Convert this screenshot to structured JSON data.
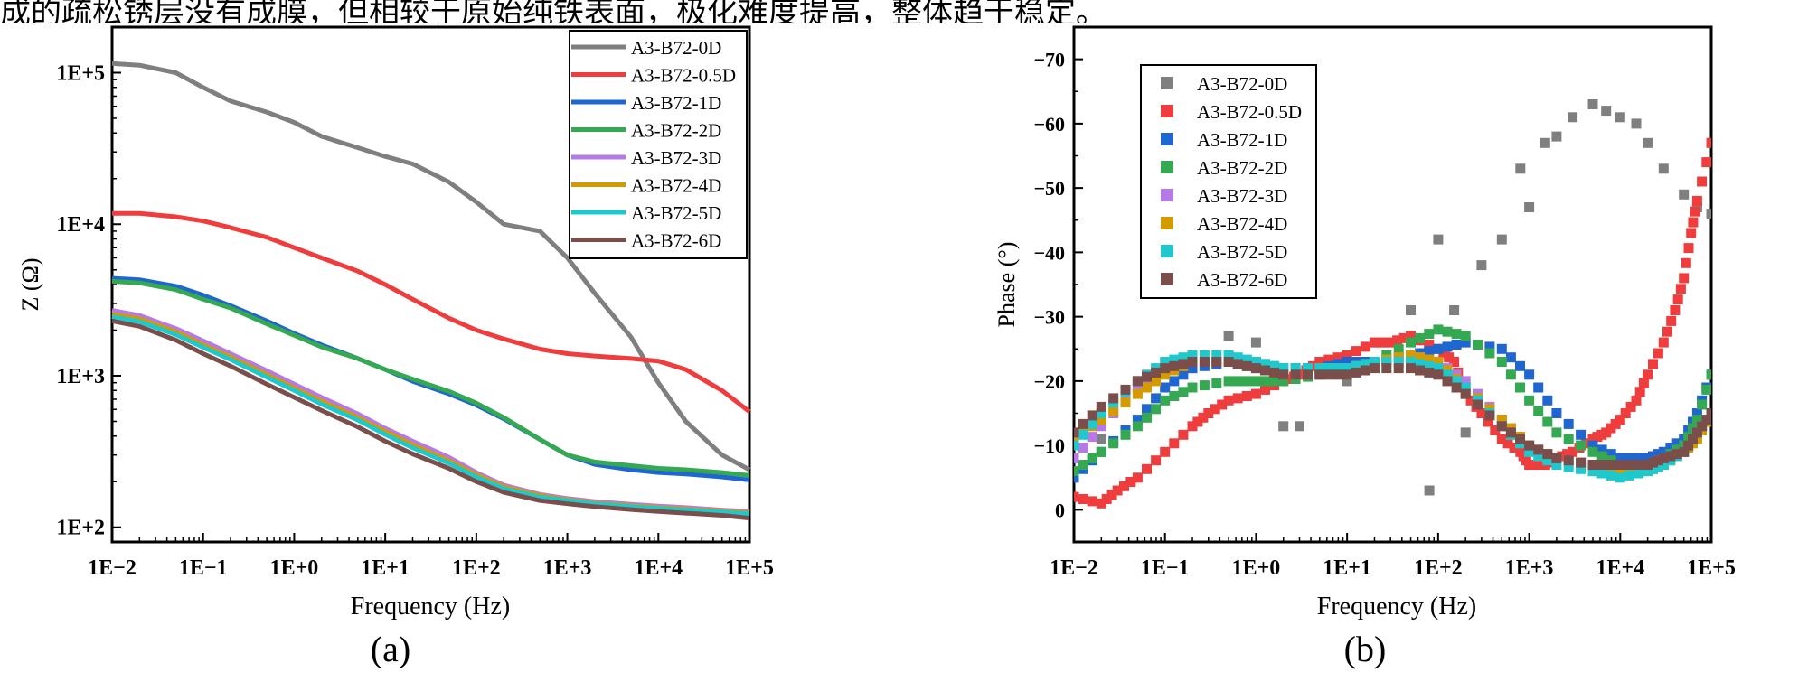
{
  "caption_fragment": "成的疏松锈层没有成膜，但相较于原始纯铁表面，极化难度提高，整体趋于稳定。",
  "series_colors": [
    "#7f7f7f",
    "#ef3d3d",
    "#1f66d1",
    "#35a852",
    "#b67ae6",
    "#d49b00",
    "#1fc8cc",
    "#7a4e4a"
  ],
  "chart_data": [
    {
      "type": "line",
      "panel_label": "(a)",
      "title": "",
      "xlabel": "Frequency (Hz)",
      "ylabel": "Z (Ω)",
      "xscale": "log",
      "yscale": "log",
      "xlim": [
        0.01,
        100000
      ],
      "ylim": [
        80,
        200000
      ],
      "xticks": [
        "1E−2",
        "1E−1",
        "1E+0",
        "1E+1",
        "1E+2",
        "1E+3",
        "1E+4",
        "1E+5"
      ],
      "yticks": [
        "1E+2",
        "1E+3",
        "1E+4",
        "1E+5"
      ],
      "legend_position": "top-right",
      "series": [
        {
          "name": "A3-B72-0D",
          "x": [
            0.01,
            0.02,
            0.05,
            0.1,
            0.2,
            0.5,
            1,
            2,
            5,
            10,
            20,
            50,
            100,
            200,
            500,
            1000,
            2000,
            5000,
            10000,
            20000,
            50000,
            100000
          ],
          "values": [
            115000,
            112000,
            100000,
            80000,
            65000,
            55000,
            47000,
            38000,
            32000,
            28000,
            25000,
            19000,
            14000,
            10000,
            9000,
            6000,
            3500,
            1800,
            900,
            500,
            300,
            240
          ]
        },
        {
          "name": "A3-B72-0.5D",
          "x": [
            0.01,
            0.02,
            0.05,
            0.1,
            0.2,
            0.5,
            1,
            2,
            5,
            10,
            20,
            50,
            100,
            200,
            500,
            1000,
            2000,
            5000,
            10000,
            20000,
            50000,
            100000
          ],
          "values": [
            11800,
            11800,
            11200,
            10500,
            9500,
            8200,
            7000,
            6000,
            4900,
            4000,
            3200,
            2400,
            2000,
            1750,
            1500,
            1400,
            1350,
            1300,
            1250,
            1100,
            800,
            580
          ]
        },
        {
          "name": "A3-B72-1D",
          "x": [
            0.01,
            0.02,
            0.05,
            0.1,
            0.2,
            0.5,
            1,
            2,
            5,
            10,
            20,
            50,
            100,
            200,
            500,
            1000,
            2000,
            5000,
            10000,
            20000,
            50000,
            100000
          ],
          "values": [
            4400,
            4300,
            3900,
            3400,
            2900,
            2300,
            1900,
            1600,
            1300,
            1100,
            920,
            760,
            640,
            520,
            380,
            300,
            260,
            240,
            230,
            225,
            215,
            205
          ]
        },
        {
          "name": "A3-B72-2D",
          "x": [
            0.01,
            0.02,
            0.05,
            0.1,
            0.2,
            0.5,
            1,
            2,
            5,
            10,
            20,
            50,
            100,
            200,
            500,
            1000,
            2000,
            5000,
            10000,
            20000,
            50000,
            100000
          ],
          "values": [
            4200,
            4100,
            3700,
            3200,
            2800,
            2200,
            1850,
            1550,
            1300,
            1100,
            950,
            790,
            660,
            530,
            380,
            300,
            270,
            255,
            245,
            240,
            230,
            220
          ]
        },
        {
          "name": "A3-B72-3D",
          "x": [
            0.01,
            0.02,
            0.05,
            0.1,
            0.2,
            0.5,
            1,
            2,
            5,
            10,
            20,
            50,
            100,
            200,
            500,
            1000,
            2000,
            5000,
            10000,
            20000,
            50000,
            100000
          ],
          "values": [
            2700,
            2500,
            2050,
            1700,
            1400,
            1080,
            880,
            720,
            560,
            450,
            370,
            290,
            230,
            190,
            165,
            155,
            148,
            142,
            138,
            135,
            130,
            127
          ]
        },
        {
          "name": "A3-B72-4D",
          "x": [
            0.01,
            0.02,
            0.05,
            0.1,
            0.2,
            0.5,
            1,
            2,
            5,
            10,
            20,
            50,
            100,
            200,
            500,
            1000,
            2000,
            5000,
            10000,
            20000,
            50000,
            100000
          ],
          "values": [
            2550,
            2380,
            1950,
            1600,
            1330,
            1020,
            830,
            680,
            530,
            430,
            350,
            275,
            222,
            185,
            162,
            152,
            145,
            139,
            135,
            132,
            128,
            125
          ]
        },
        {
          "name": "A3-B72-5D",
          "x": [
            0.01,
            0.02,
            0.05,
            0.1,
            0.2,
            0.5,
            1,
            2,
            5,
            10,
            20,
            50,
            100,
            200,
            500,
            1000,
            2000,
            5000,
            10000,
            20000,
            50000,
            100000
          ],
          "values": [
            2450,
            2280,
            1870,
            1540,
            1280,
            980,
            800,
            650,
            510,
            410,
            335,
            265,
            215,
            180,
            158,
            150,
            143,
            137,
            133,
            130,
            126,
            123
          ]
        },
        {
          "name": "A3-B72-6D",
          "x": [
            0.01,
            0.02,
            0.05,
            0.1,
            0.2,
            0.5,
            1,
            2,
            5,
            10,
            20,
            50,
            100,
            200,
            500,
            1000,
            2000,
            5000,
            10000,
            20000,
            50000,
            100000
          ],
          "values": [
            2300,
            2120,
            1720,
            1400,
            1160,
            880,
            720,
            590,
            460,
            370,
            305,
            245,
            200,
            170,
            150,
            143,
            137,
            131,
            127,
            124,
            120,
            115
          ]
        }
      ]
    },
    {
      "type": "scatter",
      "panel_label": "(b)",
      "title": "",
      "xlabel": "Frequency (Hz)",
      "ylabel": "Phase (°)",
      "xscale": "log",
      "xlim": [
        0.01,
        100000
      ],
      "ylim": [
        5,
        -75
      ],
      "yaxis_inverted": true,
      "xticks": [
        "1E−2",
        "1E−1",
        "1E+0",
        "1E+1",
        "1E+2",
        "1E+3",
        "1E+4",
        "1E+5"
      ],
      "yticks": [
        "0",
        "−10",
        "−20",
        "−30",
        "−40",
        "−50",
        "−60",
        "−70"
      ],
      "ytick_values": [
        0,
        -10,
        -20,
        -30,
        -40,
        -50,
        -60,
        -70
      ],
      "legend_position": "top-left",
      "series": [
        {
          "name": "A3-B72-0D",
          "x": [
            0.01,
            0.02,
            0.05,
            0.1,
            0.2,
            0.5,
            1,
            2,
            3,
            5,
            10,
            20,
            50,
            80,
            100,
            120,
            150,
            200,
            300,
            500,
            800,
            1000,
            1500,
            2000,
            3000,
            5000,
            7000,
            10000,
            15000,
            20000,
            30000,
            50000,
            70000,
            100000
          ],
          "values": [
            -8,
            -11,
            -20,
            -22,
            -22,
            -27,
            -26,
            -13,
            -13,
            -21,
            -20,
            -26,
            -31,
            -3,
            -42,
            -25,
            -31,
            -12,
            -38,
            -42,
            -53,
            -47,
            -57,
            -58,
            -61,
            -63,
            -62,
            -61,
            -60,
            -57,
            -53,
            -49,
            -47,
            -46
          ]
        },
        {
          "name": "A3-B72-0.5D",
          "x": [
            0.01,
            0.02,
            0.03,
            0.05,
            0.1,
            0.2,
            0.3,
            0.5,
            1,
            2,
            3,
            5,
            10,
            20,
            30,
            50,
            100,
            150,
            200,
            300,
            500,
            800,
            1000,
            1500,
            2000,
            3000,
            5000,
            7000,
            10000,
            15000,
            20000,
            30000,
            40000,
            50000,
            60000,
            70000,
            100000
          ],
          "values": [
            -2,
            -1,
            -3,
            -5,
            -9,
            -13,
            -15,
            -17,
            -18,
            -20,
            -21,
            -23,
            -24,
            -26,
            -26,
            -27,
            -25,
            -23,
            -18,
            -15,
            -11,
            -9,
            -7,
            -7,
            -8,
            -9,
            -11,
            -12,
            -14,
            -17,
            -21,
            -26,
            -31,
            -36,
            -43,
            -48,
            -57
          ]
        },
        {
          "name": "A3-B72-1D",
          "x": [
            0.01,
            0.02,
            0.05,
            0.1,
            0.2,
            0.5,
            1,
            2,
            5,
            10,
            20,
            50,
            100,
            200,
            500,
            1000,
            2000,
            5000,
            10000,
            20000,
            30000,
            50000,
            70000,
            100000
          ],
          "values": [
            -5,
            -9,
            -14,
            -19,
            -22,
            -23,
            -23,
            -22,
            -22,
            -23,
            -23,
            -24,
            -25,
            -26,
            -25,
            -21,
            -15,
            -10,
            -8,
            -8,
            -9,
            -11,
            -15,
            -21
          ]
        },
        {
          "name": "A3-B72-2D",
          "x": [
            0.01,
            0.02,
            0.05,
            0.1,
            0.2,
            0.5,
            1,
            2,
            5,
            10,
            20,
            50,
            100,
            200,
            500,
            1000,
            2000,
            5000,
            10000,
            20000,
            30000,
            50000,
            70000,
            100000
          ],
          "values": [
            -6,
            -9,
            -13,
            -17,
            -19,
            -20,
            -20,
            -20,
            -21,
            -22,
            -23,
            -26,
            -28,
            -27,
            -23,
            -17,
            -12,
            -9,
            -7,
            -7,
            -8,
            -10,
            -14,
            -21
          ]
        },
        {
          "name": "A3-B72-3D",
          "x": [
            0.01,
            0.02,
            0.05,
            0.1,
            0.2,
            0.5,
            1,
            2,
            5,
            10,
            20,
            50,
            100,
            200,
            500,
            1000,
            2000,
            5000,
            10000,
            20000,
            30000,
            50000,
            70000,
            100000
          ],
          "values": [
            -8,
            -13,
            -19,
            -22,
            -23,
            -23,
            -22,
            -21,
            -21,
            -22,
            -23,
            -24,
            -23,
            -20,
            -14,
            -10,
            -8,
            -7,
            -7,
            -7,
            -8,
            -9,
            -12,
            -15
          ]
        },
        {
          "name": "A3-B72-4D",
          "x": [
            0.01,
            0.02,
            0.05,
            0.1,
            0.2,
            0.5,
            1,
            2,
            5,
            10,
            20,
            50,
            100,
            200,
            500,
            1000,
            2000,
            5000,
            10000,
            20000,
            30000,
            50000,
            70000,
            100000
          ],
          "values": [
            -11,
            -14,
            -18,
            -21,
            -23,
            -23,
            -22,
            -21,
            -22,
            -22,
            -23,
            -24,
            -23,
            -19,
            -14,
            -10,
            -8,
            -6,
            -6,
            -6,
            -7,
            -9,
            -11,
            -15
          ]
        },
        {
          "name": "A3-B72-5D",
          "x": [
            0.01,
            0.02,
            0.05,
            0.1,
            0.2,
            0.5,
            1,
            2,
            5,
            10,
            20,
            50,
            100,
            200,
            500,
            1000,
            2000,
            5000,
            10000,
            20000,
            30000,
            50000,
            70000,
            100000
          ],
          "values": [
            -10,
            -15,
            -20,
            -23,
            -24,
            -24,
            -23,
            -22,
            -22,
            -22,
            -23,
            -23,
            -22,
            -19,
            -13,
            -9,
            -7,
            -6,
            -5,
            -6,
            -7,
            -9,
            -12,
            -15
          ]
        },
        {
          "name": "A3-B72-6D",
          "x": [
            0.01,
            0.02,
            0.05,
            0.1,
            0.2,
            0.5,
            1,
            2,
            5,
            10,
            20,
            50,
            100,
            200,
            500,
            1000,
            2000,
            5000,
            10000,
            20000,
            30000,
            50000,
            70000,
            100000
          ],
          "values": [
            -12,
            -16,
            -20,
            -22,
            -23,
            -23,
            -22,
            -21,
            -21,
            -21,
            -22,
            -22,
            -21,
            -18,
            -13,
            -10,
            -8,
            -7,
            -7,
            -7,
            -8,
            -9,
            -12,
            -15
          ]
        }
      ]
    }
  ]
}
